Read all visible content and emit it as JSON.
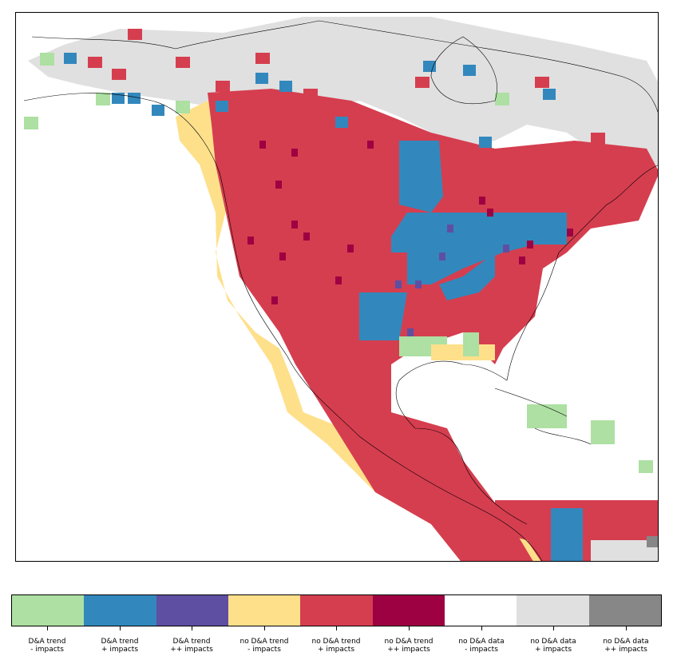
{
  "map": {
    "region": "North and Central America",
    "category_colors": {
      "da_trend_neg": "#ade0a2",
      "da_trend_pos": "#3288bd",
      "da_trend_pospos": "#5e4fa2",
      "no_da_trend_neg": "#fee08b",
      "no_da_trend_pos": "#d53e4f",
      "no_da_trend_pospos": "#9e0142",
      "no_da_data_neg": "#ffffff",
      "no_da_data_pos": "#e0e0e0",
      "no_da_data_pospos": "#878787"
    },
    "coastline_color": "#000000"
  },
  "legend": {
    "items": [
      {
        "line1": "D&A trend",
        "line2": "- impacts",
        "color": "#ade0a2"
      },
      {
        "line1": "D&A trend",
        "line2": "+ impacts",
        "color": "#3288bd"
      },
      {
        "line1": "D&A trend",
        "line2": "++ impacts",
        "color": "#5e4fa2"
      },
      {
        "line1": "no D&A trend",
        "line2": "- impacts",
        "color": "#fee08b"
      },
      {
        "line1": "no D&A trend",
        "line2": "+ impacts",
        "color": "#d53e4f"
      },
      {
        "line1": "no D&A trend",
        "line2": "++ impacts",
        "color": "#9e0142"
      },
      {
        "line1": "no D&A data",
        "line2": "- impacts",
        "color": "#ffffff"
      },
      {
        "line1": "no D&A data",
        "line2": "+ impacts",
        "color": "#e0e0e0"
      },
      {
        "line1": "no D&A data",
        "line2": "++ impacts",
        "color": "#878787"
      }
    ]
  }
}
